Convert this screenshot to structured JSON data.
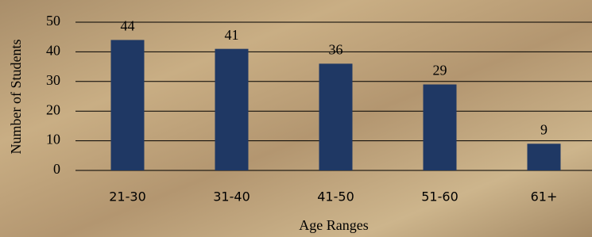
{
  "chart_data": {
    "type": "bar",
    "x_label": "Age Ranges",
    "y_label": "Number of Students",
    "categories": [
      "21-30",
      "31-40",
      "41-50",
      "51-60",
      "61+"
    ],
    "values": [
      44,
      41,
      36,
      29,
      9
    ],
    "color": "#1f3864",
    "ylim": [
      0,
      50
    ],
    "yticks": [
      0,
      10,
      20,
      30,
      40,
      50
    ],
    "grid": true
  }
}
